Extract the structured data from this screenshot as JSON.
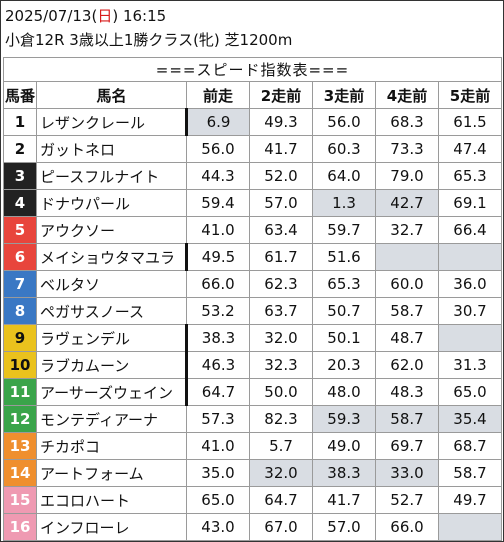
{
  "race": {
    "date": "2025/07/13",
    "weekday": "日",
    "time": "16:15",
    "info": "小倉12R 3歳以上1勝クラス(牝) 芝1200m"
  },
  "table_title": "===スピード指数表===",
  "columns": [
    "馬番",
    "馬名",
    "前走",
    "2走前",
    "3走前",
    "4走前",
    "5走前"
  ],
  "colors": {
    "frame1": "#ffffff",
    "frame2": "#ffffff",
    "frame3": "#222222",
    "frame4": "#222222",
    "frame5": "#e8453c",
    "frame6": "#e8453c",
    "frame7": "#3a78c4",
    "frame8": "#3a78c4",
    "frame9": "#eac21d",
    "frame10": "#eac21d",
    "frame11": "#3aa44a",
    "frame12": "#3aa44a",
    "frame13": "#ef8f2e",
    "frame14": "#ef8f2e",
    "frame15": "#ef9ab2",
    "frame16": "#ef9ab2",
    "shade": "#d9dde3"
  },
  "rows": [
    {
      "no": "1",
      "name": "レザンクレール",
      "v": [
        "6.9",
        "49.3",
        "56.0",
        "68.3",
        "61.5"
      ],
      "shade": [
        1,
        0,
        0,
        0,
        0
      ],
      "bar": true
    },
    {
      "no": "2",
      "name": "ガットネロ",
      "v": [
        "56.0",
        "41.7",
        "60.3",
        "73.3",
        "47.4"
      ],
      "shade": [
        0,
        0,
        0,
        0,
        0
      ],
      "bar": false
    },
    {
      "no": "3",
      "name": "ピースフルナイト",
      "v": [
        "44.3",
        "52.0",
        "64.0",
        "79.0",
        "65.3"
      ],
      "shade": [
        0,
        0,
        0,
        0,
        0
      ],
      "bar": false
    },
    {
      "no": "4",
      "name": "ドナウパール",
      "v": [
        "59.4",
        "57.0",
        "1.3",
        "42.7",
        "69.1"
      ],
      "shade": [
        0,
        0,
        1,
        1,
        0
      ],
      "bar": false
    },
    {
      "no": "5",
      "name": "アウクソー",
      "v": [
        "41.0",
        "63.4",
        "59.7",
        "32.7",
        "66.4"
      ],
      "shade": [
        0,
        0,
        0,
        0,
        0
      ],
      "bar": false
    },
    {
      "no": "6",
      "name": "メイショウタマユラ",
      "v": [
        "49.5",
        "61.7",
        "51.6",
        "",
        ""
      ],
      "shade": [
        0,
        0,
        0,
        1,
        1
      ],
      "bar": true
    },
    {
      "no": "7",
      "name": "ベルタソ",
      "v": [
        "66.0",
        "62.3",
        "65.3",
        "60.0",
        "36.0"
      ],
      "shade": [
        0,
        0,
        0,
        0,
        0
      ],
      "bar": false
    },
    {
      "no": "8",
      "name": "ペガサスノース",
      "v": [
        "53.2",
        "63.7",
        "50.7",
        "58.7",
        "30.7"
      ],
      "shade": [
        0,
        0,
        0,
        0,
        0
      ],
      "bar": false
    },
    {
      "no": "9",
      "name": "ラヴェンデル",
      "v": [
        "38.3",
        "32.0",
        "50.1",
        "48.7",
        ""
      ],
      "shade": [
        0,
        0,
        0,
        0,
        1
      ],
      "bar": true
    },
    {
      "no": "10",
      "name": "ラブカムーン",
      "v": [
        "46.3",
        "32.3",
        "20.3",
        "62.0",
        "31.3"
      ],
      "shade": [
        0,
        0,
        0,
        0,
        0
      ],
      "bar": true
    },
    {
      "no": "11",
      "name": "アーサーズウェイン",
      "v": [
        "64.7",
        "50.0",
        "48.0",
        "48.3",
        "65.0"
      ],
      "shade": [
        0,
        0,
        0,
        0,
        0
      ],
      "bar": true
    },
    {
      "no": "12",
      "name": "モンテディアーナ",
      "v": [
        "57.3",
        "82.3",
        "59.3",
        "58.7",
        "35.4"
      ],
      "shade": [
        0,
        0,
        1,
        1,
        1
      ],
      "bar": false
    },
    {
      "no": "13",
      "name": "チカポコ",
      "v": [
        "41.0",
        "5.7",
        "49.0",
        "69.7",
        "68.7"
      ],
      "shade": [
        0,
        0,
        0,
        0,
        0
      ],
      "bar": false
    },
    {
      "no": "14",
      "name": "アートフォーム",
      "v": [
        "35.0",
        "32.0",
        "38.3",
        "33.0",
        "58.7"
      ],
      "shade": [
        0,
        1,
        1,
        1,
        0
      ],
      "bar": false
    },
    {
      "no": "15",
      "name": "エコロハート",
      "v": [
        "65.0",
        "64.7",
        "41.7",
        "52.7",
        "49.7"
      ],
      "shade": [
        0,
        0,
        0,
        0,
        0
      ],
      "bar": false
    },
    {
      "no": "16",
      "name": "インフローレ",
      "v": [
        "43.0",
        "67.0",
        "57.0",
        "66.0",
        ""
      ],
      "shade": [
        0,
        0,
        0,
        0,
        1
      ],
      "bar": false
    }
  ]
}
